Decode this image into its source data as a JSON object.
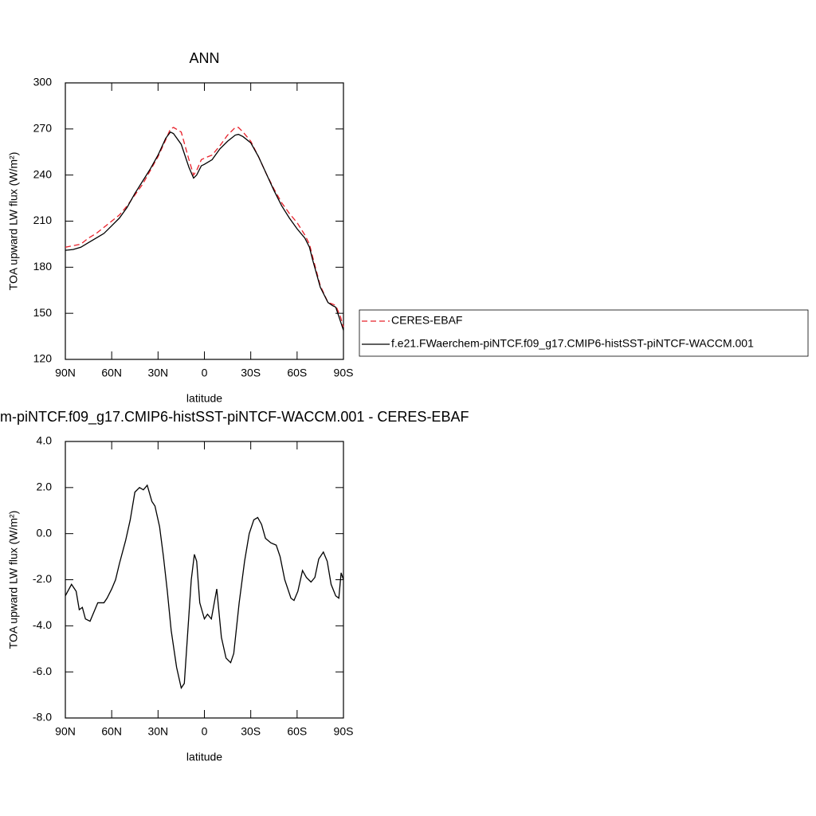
{
  "chart_data": [
    {
      "type": "line",
      "title": "ANN",
      "x_label": "latitude",
      "y_label": "TOA upward LW flux (W/m²)",
      "x": [
        90,
        85,
        80,
        75,
        70,
        65,
        60,
        55,
        50,
        45,
        40,
        35,
        30,
        25,
        22,
        20,
        15,
        10,
        7,
        5,
        2,
        0,
        -5,
        -10,
        -15,
        -20,
        -22,
        -25,
        -30,
        -35,
        -40,
        -45,
        -50,
        -55,
        -60,
        -65,
        -68,
        -70,
        -75,
        -80,
        -83,
        -85,
        -88,
        -90
      ],
      "series": [
        {
          "name": "CERES-EBAF",
          "color": "#e8202a",
          "dash": true,
          "values": [
            193,
            194,
            195,
            199,
            202,
            206,
            210,
            214,
            220,
            227,
            234,
            243,
            252,
            263,
            270,
            271,
            268,
            250,
            240,
            243,
            250,
            251,
            253,
            259,
            266,
            271,
            271,
            268,
            262,
            252,
            241,
            231,
            222,
            215,
            209,
            201,
            195,
            187,
            168,
            157,
            156,
            155,
            148,
            141
          ]
        },
        {
          "name": "f.e21.FWaerchem-piNTCF.f09_g17.CMIP6-histSST-piNTCF-WACCM.001",
          "color": "#000000",
          "dash": false,
          "values": [
            191,
            191.5,
            193,
            196,
            199,
            202,
            207,
            212,
            219,
            228,
            236,
            244,
            253,
            264,
            268,
            267,
            260,
            245,
            238,
            240,
            246,
            247,
            250,
            257,
            262,
            266,
            266.5,
            265,
            261,
            252,
            241,
            230,
            220,
            212,
            205,
            199,
            193,
            185,
            167,
            157,
            155,
            154,
            145,
            139
          ]
        }
      ],
      "xlim": [
        90,
        -90
      ],
      "xticks": [
        {
          "value": 90,
          "label": "90N"
        },
        {
          "value": 60,
          "label": "60N"
        },
        {
          "value": 30,
          "label": "30N"
        },
        0,
        {
          "value": -30,
          "label": "30S"
        },
        {
          "value": -60,
          "label": "60S"
        },
        {
          "value": -90,
          "label": "90S"
        }
      ],
      "ylim": [
        120,
        300
      ],
      "yticks": [
        120,
        150,
        180,
        210,
        240,
        270,
        300
      ]
    },
    {
      "type": "line",
      "title": "m-piNTCF.f09_g17.CMIP6-histSST-piNTCF-WACCM.001 - CERES-EBAF",
      "x_label": "latitude",
      "y_label": "TOA upward LW flux (W/m²)",
      "x": [
        90,
        86,
        83,
        81,
        79,
        77,
        74,
        71.5,
        69,
        65,
        63,
        60,
        57.5,
        55,
        51,
        48,
        45,
        42,
        39.5,
        37,
        34,
        32,
        29,
        26.5,
        24,
        21.5,
        18,
        15,
        13,
        11,
        8.5,
        6.5,
        5,
        3,
        0,
        -2,
        -4.5,
        -8,
        -11,
        -14,
        -17,
        -19,
        -22.5,
        -26,
        -29,
        -32,
        -34.5,
        -37,
        -39.5,
        -43,
        -46.5,
        -49,
        -52,
        -56,
        -58,
        -60.5,
        -63.5,
        -66,
        -69,
        -71.5,
        -74,
        -77,
        -79.5,
        -82,
        -85,
        -87,
        -88.5,
        -90
      ],
      "color": "#000000",
      "values": [
        -2.7,
        -2.2,
        -2.5,
        -3.3,
        -3.2,
        -3.7,
        -3.8,
        -3.4,
        -3.0,
        -3.0,
        -2.8,
        -2.4,
        -2.0,
        -1.3,
        -0.3,
        0.6,
        1.8,
        2.0,
        1.9,
        2.1,
        1.4,
        1.2,
        0.3,
        -1.0,
        -2.5,
        -4.2,
        -5.8,
        -6.7,
        -6.5,
        -4.5,
        -2.0,
        -0.9,
        -1.2,
        -3.0,
        -3.7,
        -3.5,
        -3.7,
        -2.4,
        -4.5,
        -5.4,
        -5.6,
        -5.2,
        -3.0,
        -1.2,
        0.0,
        0.6,
        0.7,
        0.4,
        -0.2,
        -0.4,
        -0.5,
        -1.0,
        -2.0,
        -2.8,
        -2.9,
        -2.5,
        -1.6,
        -1.9,
        -2.1,
        -1.9,
        -1.1,
        -0.8,
        -1.2,
        -2.2,
        -2.7,
        -2.8,
        -1.7,
        -2.0
      ],
      "xlim": [
        90,
        -90
      ],
      "xticks": [
        {
          "value": 90,
          "label": "90N"
        },
        {
          "value": 60,
          "label": "60N"
        },
        {
          "value": 30,
          "label": "30N"
        },
        0,
        {
          "value": -30,
          "label": "30S"
        },
        {
          "value": -60,
          "label": "60S"
        },
        {
          "value": -90,
          "label": "90S"
        }
      ],
      "ylim": [
        -8,
        4
      ],
      "yticks": [
        {
          "value": -8,
          "label": "-8.0"
        },
        {
          "value": -6,
          "label": "-6.0"
        },
        {
          "value": -4,
          "label": "-4.0"
        },
        {
          "value": -2,
          "label": "-2.0"
        },
        {
          "value": 0,
          "label": "0.0"
        },
        {
          "value": 2,
          "label": "2.0"
        },
        {
          "value": 4,
          "label": "4.0"
        }
      ]
    }
  ]
}
